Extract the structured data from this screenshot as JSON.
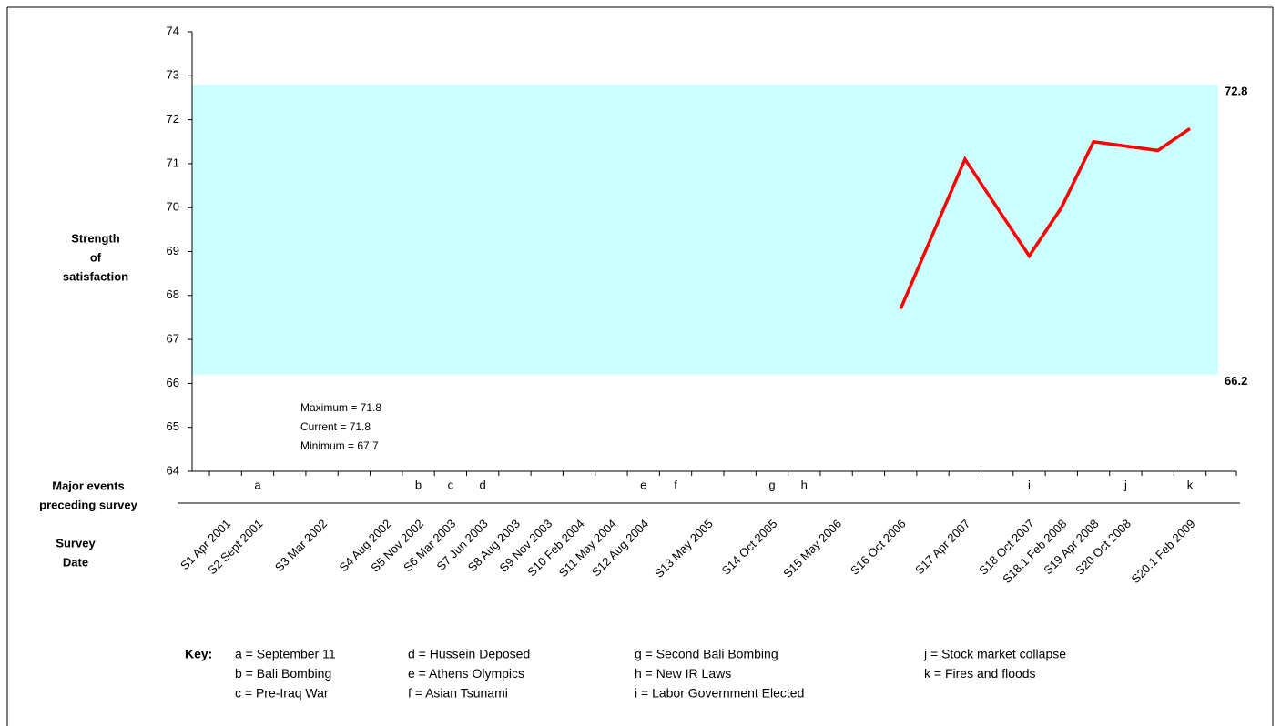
{
  "chart_data": {
    "type": "line",
    "y_label": [
      "Strength",
      "of",
      "satisfaction"
    ],
    "events_label": [
      "Major events",
      "preceding survey"
    ],
    "x_label": [
      "Survey",
      "Date"
    ],
    "categories": [
      "S1 Apr 2001",
      "S2 Sept 2001",
      null,
      "S3 Mar 2002",
      null,
      "S4 Aug 2002",
      "S5 Nov 2002",
      "S6 Mar 2003",
      "S7 Jun 2003",
      "S8 Aug 2003",
      "S9 Nov 2003",
      "S10 Feb 2004",
      "S11 May 2004",
      "S12 Aug 2004",
      null,
      "S13 May 2005",
      null,
      "S14 Oct 2005",
      null,
      "S15 May 2006",
      null,
      "S16 Oct 2006",
      null,
      "S17 Apr 2007",
      null,
      "S18 Oct 2007",
      "S18.1 Feb 2008",
      "S19 Apr 2008",
      "S20 Oct 2008",
      null,
      "S20.1 Feb 2009",
      null
    ],
    "events": [
      null,
      "a",
      null,
      null,
      null,
      null,
      "b",
      "c",
      "d",
      null,
      null,
      null,
      null,
      "e",
      "f",
      null,
      null,
      "g",
      "h",
      null,
      null,
      null,
      null,
      null,
      null,
      "i",
      null,
      null,
      "j",
      null,
      "k",
      null
    ],
    "series": [
      {
        "color": "#ff0000",
        "values": [
          null,
          null,
          null,
          null,
          null,
          null,
          null,
          null,
          null,
          null,
          null,
          null,
          null,
          null,
          null,
          null,
          null,
          null,
          null,
          null,
          null,
          67.7,
          69.4,
          71.1,
          70.0,
          68.9,
          70.0,
          71.5,
          71.4,
          71.3,
          71.8,
          null
        ]
      }
    ],
    "band": {
      "min": 66.2,
      "max": 72.8,
      "color": "#ccffff"
    },
    "annotations": [
      "Maximum = 71.8",
      "Current = 71.8",
      "Minimum = 67.7"
    ],
    "ylim": [
      64,
      74
    ],
    "yticks": [
      64,
      65,
      66,
      67,
      68,
      69,
      70,
      71,
      72,
      73,
      74
    ],
    "key": {
      "title": "Key:",
      "items": [
        "a = September 11",
        "b = Bali Bombing",
        "c = Pre-Iraq War",
        "d = Hussein Deposed",
        "e = Athens Olympics",
        "f = Asian Tsunami",
        "g = Second Bali Bombing",
        "h = New IR Laws",
        "i = Labor Government Elected",
        "j = Stock market collapse",
        "k = Fires and floods"
      ]
    }
  }
}
